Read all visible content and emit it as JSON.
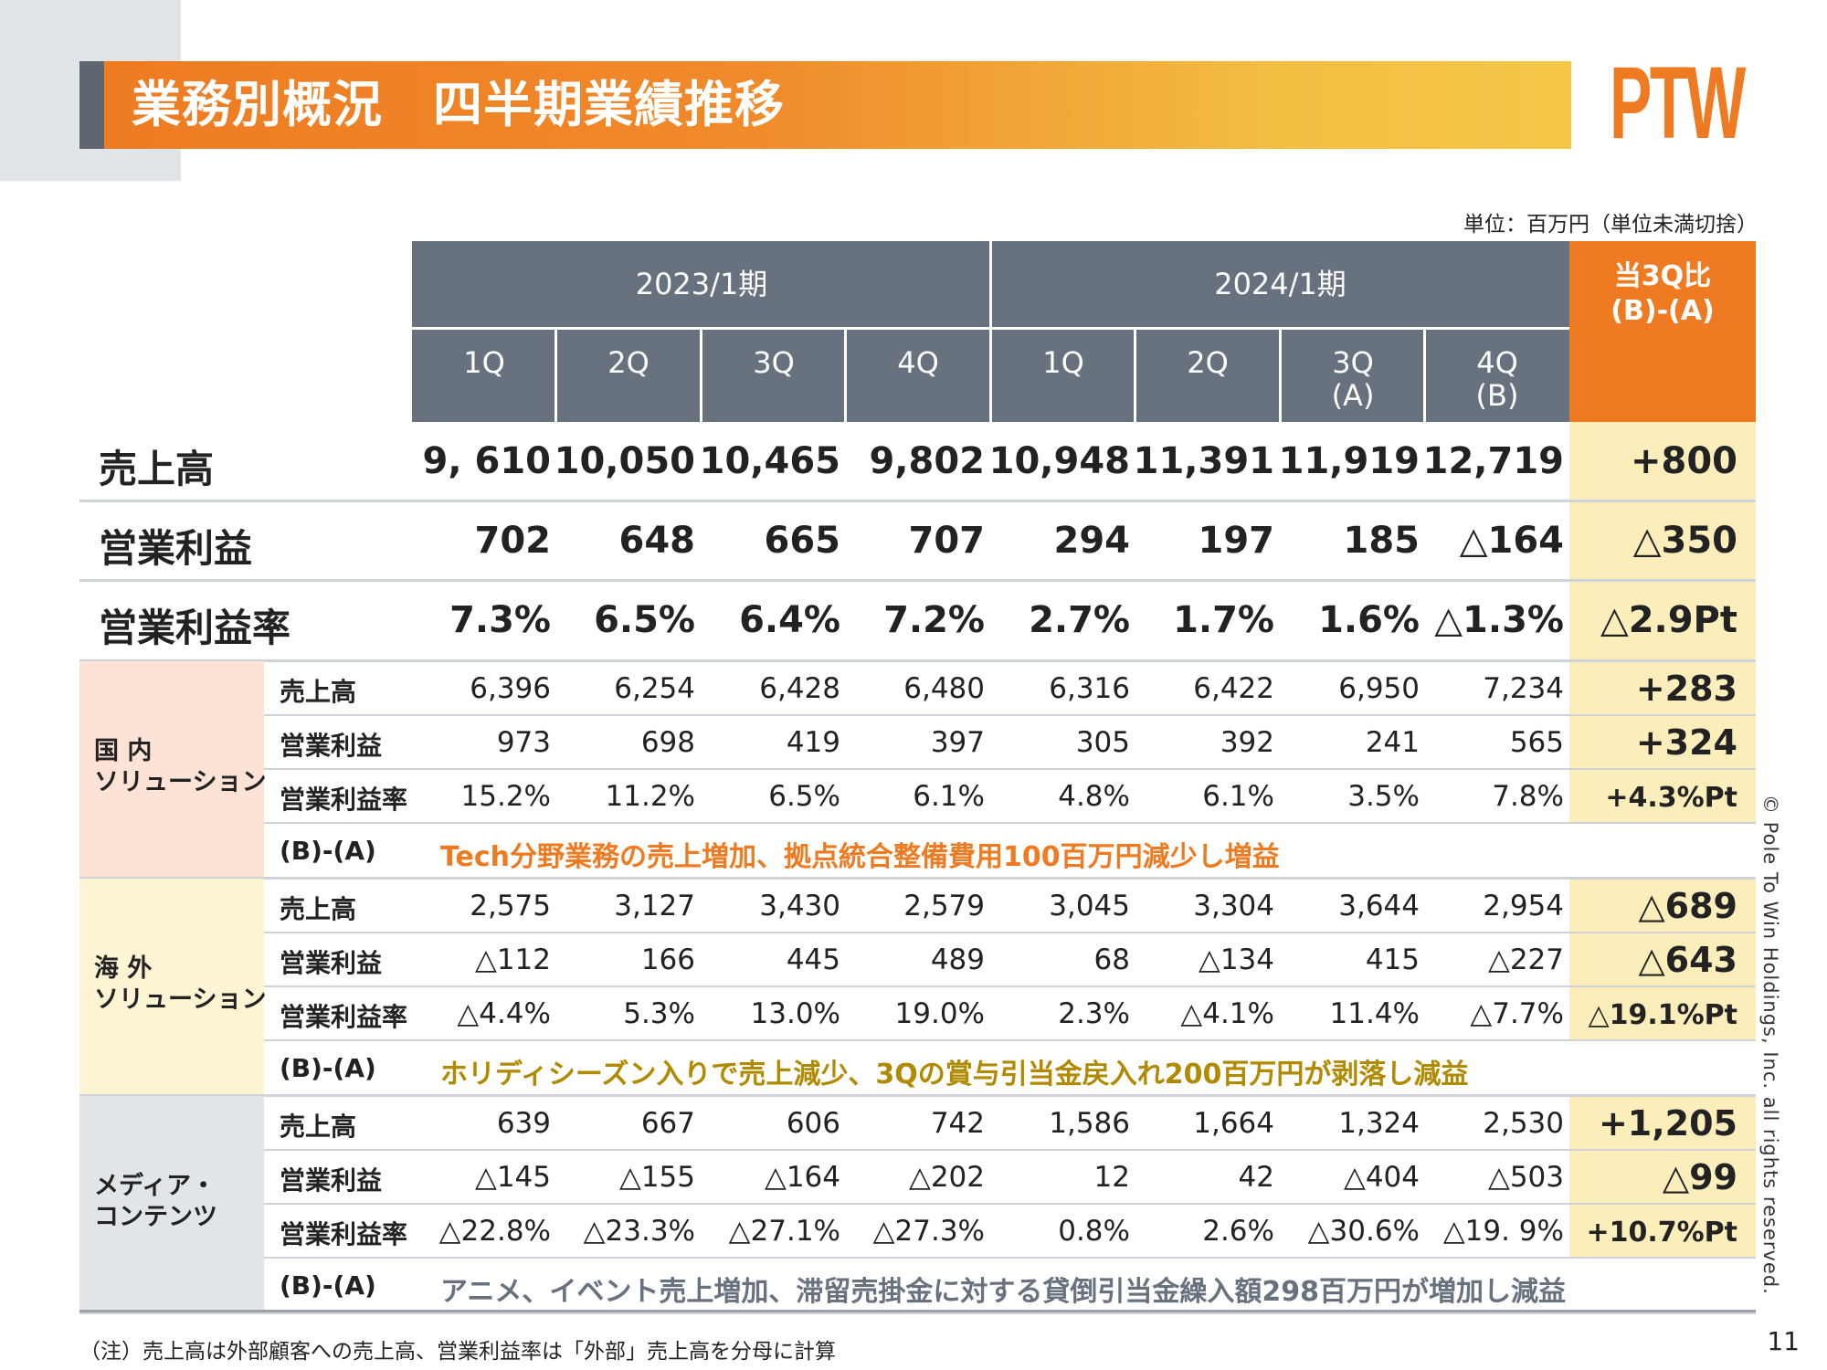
{
  "header": {
    "title": "業務別概況　四半期業績推移",
    "logo": "PTW",
    "unit": "単位：百万円（単位未満切捨）"
  },
  "columns": {
    "year_groups": [
      "2023/1期",
      "2024/1期"
    ],
    "quarters": [
      "1Q",
      "2Q",
      "3Q",
      "4Q",
      "1Q",
      "2Q",
      "3Q\n(A)",
      "4Q\n(B)"
    ],
    "ratio_header": "当3Q比\n(B)-(A)"
  },
  "colors": {
    "accent_orange": "#ee7b22",
    "header_gray": "#68727f",
    "ratio_yellow": "#fbeeba",
    "domestic_bg": "#fce3d6",
    "overseas_bg": "#fdf4d4",
    "media_bg": "#e2e5e8",
    "comment_domestic": "#ee7b22",
    "comment_overseas": "#b08a00",
    "comment_media": "#68727f"
  },
  "summary": [
    {
      "label": "売上高",
      "values": [
        "9, 610",
        "10,050",
        "10,465",
        "9,802",
        "10,948",
        "11,391",
        "11,919",
        "12,719"
      ],
      "diff": "+800"
    },
    {
      "label": "営業利益",
      "values": [
        "702",
        "648",
        "665",
        "707",
        "294",
        "197",
        "185",
        "△164"
      ],
      "diff": "△350"
    },
    {
      "label": "営業利益率",
      "values": [
        "7.3%",
        "6.5%",
        "6.4%",
        "7.2%",
        "2.7%",
        "1.7%",
        "1.6%",
        "△1.3%"
      ],
      "diff": "△2.9Pt"
    }
  ],
  "segments": [
    {
      "name": "国 内\nソリューション",
      "rows": [
        {
          "label": "売上高",
          "values": [
            "6,396",
            "6,254",
            "6,428",
            "6,480",
            "6,316",
            "6,422",
            "6,950",
            "7,234"
          ],
          "diff": "+283"
        },
        {
          "label": "営業利益",
          "values": [
            "973",
            "698",
            "419",
            "397",
            "305",
            "392",
            "241",
            "565"
          ],
          "diff": "+324"
        },
        {
          "label": "営業利益率",
          "values": [
            "15.2%",
            "11.2%",
            "6.5%",
            "6.1%",
            "4.8%",
            "6.1%",
            "3.5%",
            "7.8%"
          ],
          "diff": "+4.3%Pt"
        }
      ],
      "ba_label": "(B)-(A)",
      "comment": "Tech分野業務の売上増加、拠点統合整備費用100百万円減少し増益"
    },
    {
      "name": "海 外\nソリューション",
      "rows": [
        {
          "label": "売上高",
          "values": [
            "2,575",
            "3,127",
            "3,430",
            "2,579",
            "3,045",
            "3,304",
            "3,644",
            "2,954"
          ],
          "diff": "△689"
        },
        {
          "label": "営業利益",
          "values": [
            "△112",
            "166",
            "445",
            "489",
            "68",
            "△134",
            "415",
            "△227"
          ],
          "diff": "△643"
        },
        {
          "label": "営業利益率",
          "values": [
            "△4.4%",
            "5.3%",
            "13.0%",
            "19.0%",
            "2.3%",
            "△4.1%",
            "11.4%",
            "△7.7%"
          ],
          "diff": "△19.1%Pt"
        }
      ],
      "ba_label": "(B)-(A)",
      "comment": "ホリディシーズン入りで売上減少、3Qの賞与引当金戻入れ200百万円が剥落し減益"
    },
    {
      "name": "メディア・\nコンテンツ",
      "rows": [
        {
          "label": "売上高",
          "values": [
            "639",
            "667",
            "606",
            "742",
            "1,586",
            "1,664",
            "1,324",
            "2,530"
          ],
          "diff": "+1,205"
        },
        {
          "label": "営業利益",
          "values": [
            "△145",
            "△155",
            "△164",
            "△202",
            "12",
            "42",
            "△404",
            "△503"
          ],
          "diff": "△99"
        },
        {
          "label": "営業利益率",
          "values": [
            "△22.8%",
            "△23.3%",
            "△27.1%",
            "△27.3%",
            "0.8%",
            "2.6%",
            "△30.6%",
            "△19. 9%"
          ],
          "diff": "+10.7%Pt"
        }
      ],
      "ba_label": "(B)-(A)",
      "comment": "アニメ、イベント売上増加、滞留売掛金に対する貸倒引当金繰入額298百万円が増加し減益"
    }
  ],
  "footer": {
    "note": "（注）売上高は外部顧客への売上高、営業利益率は「外部」売上高を分母に計算",
    "page_number": "11",
    "copyright": "© Pole To Win Holdings, Inc. all rights reserved."
  }
}
